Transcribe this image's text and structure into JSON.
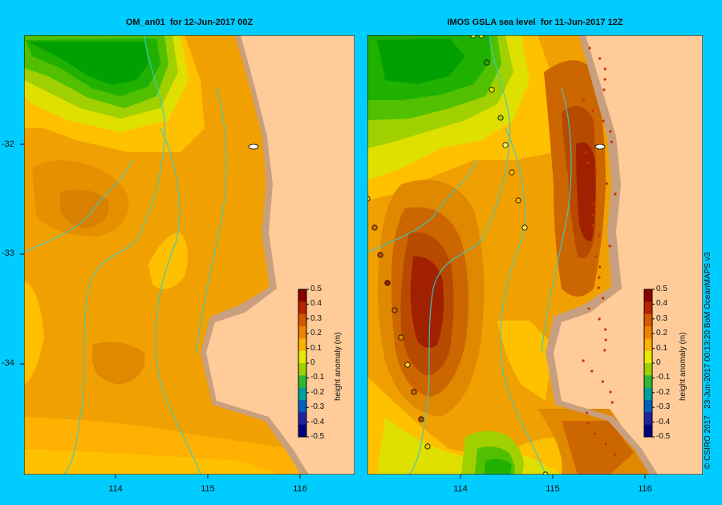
{
  "panels": {
    "left": {
      "title": "OM_an01  for 12-Jun-2017 00Z"
    },
    "right": {
      "title": "IMOS GSLA sea level  for 11-Jun-2017 12Z"
    }
  },
  "axes": {
    "latitudes": [
      "-32",
      "-33",
      "-34"
    ],
    "longitudes": [
      "114",
      "115",
      "116"
    ]
  },
  "colorbar": {
    "title": "height anomaly (m)",
    "ticks": [
      "0.5",
      "0.4",
      "0.3",
      "0.2",
      "0.1",
      "0",
      "-0.1",
      "-0.2",
      "-0.3",
      "-0.4",
      "-0.5"
    ]
  },
  "credit": "© CSIRO 2017   23-Jun-2017 00:13:20 BoM OceanMAPS v3",
  "colors": {
    "background": "#00ccff",
    "land": "#ffcc99",
    "shelf": "#c8a080",
    "contour_line": "#33cccc"
  }
}
